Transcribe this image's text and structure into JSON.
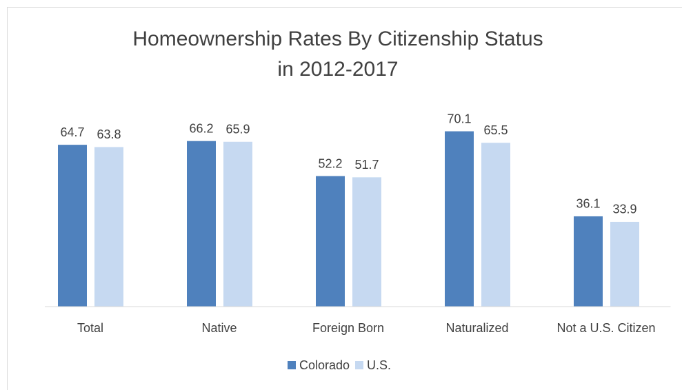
{
  "chart_data": {
    "type": "bar",
    "title": [
      "Homeownership Rates By Citizenship Status",
      "in 2012-2017"
    ],
    "categories": [
      "Total",
      "Native",
      "Foreign Born",
      "Naturalized",
      "Not a U.S. Citizen"
    ],
    "series": [
      {
        "name": "Colorado",
        "color": "#4f81bd",
        "values": [
          64.7,
          66.2,
          52.2,
          70.1,
          36.1
        ]
      },
      {
        "name": "U.S.",
        "color": "#c6d9f1",
        "values": [
          63.8,
          65.9,
          51.7,
          65.5,
          33.9
        ]
      }
    ],
    "ylim": [
      0,
      80
    ],
    "legend": "bottom"
  }
}
